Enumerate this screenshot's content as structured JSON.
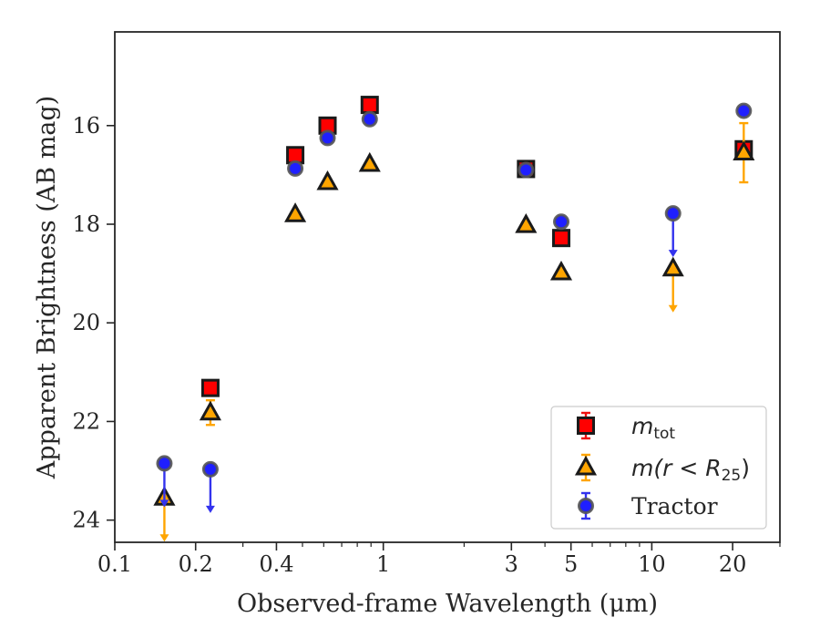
{
  "chart_data": {
    "type": "scatter",
    "title": "",
    "xlabel": "Observed-frame Wavelength (μm)",
    "ylabel": "Apparent Brightness (AB mag)",
    "xscale": "log",
    "xlim": [
      0.1,
      30
    ],
    "ylim": [
      24.45,
      14.1
    ],
    "y_inverted": true,
    "grid": false,
    "legend_position": "bottom-right",
    "xticks": [
      0.1,
      0.2,
      0.4,
      1,
      3,
      5,
      10,
      20
    ],
    "xtick_labels": [
      "0.1",
      "0.2",
      "0.4",
      "1",
      "3",
      "5",
      "10",
      "20"
    ],
    "yticks": [
      16,
      18,
      20,
      22,
      24
    ],
    "ytick_labels": [
      "16",
      "18",
      "20",
      "22",
      "24"
    ],
    "series": [
      {
        "name": "m_tot",
        "label_main": "m",
        "label_sub": "tot",
        "marker": "square",
        "fill": "#ff0000",
        "errcolor": "#ee1111",
        "points": [
          {
            "x": 0.227,
            "y": 21.32
          },
          {
            "x": 0.47,
            "y": 16.6
          },
          {
            "x": 0.62,
            "y": 16.0
          },
          {
            "x": 0.89,
            "y": 15.58
          },
          {
            "x": 3.4,
            "y": 16.88
          },
          {
            "x": 4.6,
            "y": 18.28
          },
          {
            "x": 22.0,
            "y": 16.48
          }
        ]
      },
      {
        "name": "m(r < R25)",
        "label_main": "m(r < R",
        "label_sub": "25",
        "label_end": ")",
        "marker": "triangle",
        "fill": "#ffa500",
        "errcolor": "#ffa500",
        "points": [
          {
            "x": 0.153,
            "y": 23.55,
            "upper_limit": true
          },
          {
            "x": 0.227,
            "y": 21.82,
            "err": 0.25
          },
          {
            "x": 0.47,
            "y": 17.8
          },
          {
            "x": 0.62,
            "y": 17.15
          },
          {
            "x": 0.89,
            "y": 16.78
          },
          {
            "x": 3.4,
            "y": 18.02
          },
          {
            "x": 4.6,
            "y": 18.98
          },
          {
            "x": 12.0,
            "y": 18.9,
            "upper_limit": true
          },
          {
            "x": 22.0,
            "y": 16.55,
            "err": 0.6
          }
        ]
      },
      {
        "name": "Tractor",
        "label_main": "Tractor",
        "marker": "circle",
        "fill": "#1f1fff",
        "errcolor": "#3333ee",
        "points": [
          {
            "x": 0.153,
            "y": 22.85,
            "upper_limit": true
          },
          {
            "x": 0.227,
            "y": 22.97,
            "upper_limit": true
          },
          {
            "x": 0.47,
            "y": 16.87
          },
          {
            "x": 0.62,
            "y": 16.25
          },
          {
            "x": 0.89,
            "y": 15.87
          },
          {
            "x": 3.4,
            "y": 16.9
          },
          {
            "x": 4.6,
            "y": 17.95
          },
          {
            "x": 12.0,
            "y": 17.78,
            "upper_limit": true
          },
          {
            "x": 22.0,
            "y": 15.7
          }
        ]
      }
    ]
  }
}
